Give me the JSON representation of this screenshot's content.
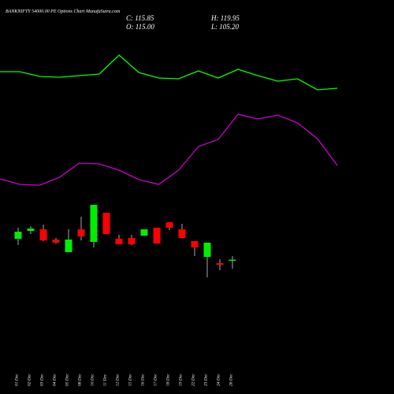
{
  "chart_data": {
    "type": "candlestick",
    "title": "BANKNIFTY 54000.00 PE Options Chart MunafaSutra.com",
    "ohlc_labels": [
      "C: 115.85",
      "O: 115.00",
      "H: 119.95",
      "L: 105.20"
    ],
    "categories": [
      "01 Dec",
      "02 Dec",
      "03 Dec",
      "04 Dec",
      "05 Dec",
      "08 Dec",
      "10 Dec",
      "11 Dec",
      "12 Dec",
      "15 Dec",
      "16 Dec",
      "17 Dec",
      "18 Dec",
      "19 Dec",
      "22 Dec",
      "23 Dec",
      "24 Dec",
      "26 Dec"
    ],
    "open": [
      140.4,
      149.7,
      151.5,
      139.5,
      124.7,
      151.5,
      136.7,
      171.0,
      140.4,
      141.3,
      144.1,
      153.4,
      159.8,
      151.5,
      137.6,
      119.1,
      111.7,
      115.0
    ],
    "high": [
      153.4,
      155.2,
      157.1,
      141.3,
      151.5,
      166.3,
      180.2,
      171.0,
      145.0,
      145.0,
      151.5,
      153.4,
      159.8,
      158.0,
      137.6,
      135.8,
      116.3,
      119.95
    ],
    "low": [
      133.0,
      146.0,
      137.6,
      134.8,
      124.7,
      138.5,
      130.2,
      146.0,
      133.9,
      133.0,
      144.1,
      134.8,
      150.6,
      141.3,
      120.0,
      95.0,
      103.4,
      105.2
    ],
    "close": [
      148.7,
      152.4,
      138.5,
      135.8,
      139.5,
      143.2,
      180.2,
      146.0,
      133.9,
      133.9,
      151.5,
      134.8,
      153.4,
      141.3,
      130.2,
      135.8,
      109.8,
      115.85
    ],
    "up_color": "#00ee00",
    "down_color": "#ff0000",
    "ylim": [
      -42,
      421
    ],
    "series": [
      {
        "color": "#00ff00",
        "axis": "y2",
        "values": [
          81.8,
          81.8,
          80.6,
          80.4,
          80.8,
          81.2,
          86,
          81.6,
          80.2,
          80,
          82,
          80.2,
          82.4,
          80.8,
          79.4,
          80,
          77.2,
          77.6
        ]
      },
      {
        "color": "#cc00cc",
        "axis": "y2",
        "values": [
          54.6,
          53.2,
          53,
          55,
          58.6,
          58.4,
          56.8,
          54.4,
          53.2,
          56.8,
          62.8,
          64.6,
          71,
          69.8,
          70.8,
          68.8,
          64.8,
          58
        ]
      }
    ],
    "y2lim": [
      0,
      100
    ]
  }
}
